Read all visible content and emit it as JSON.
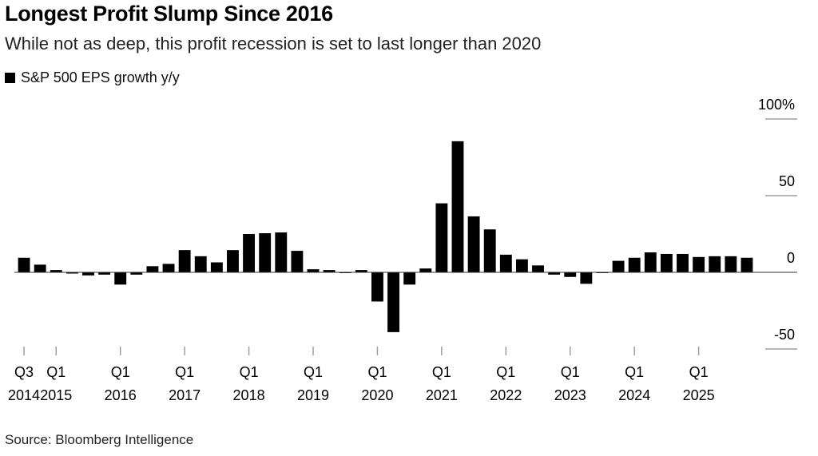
{
  "title": "Longest Profit Slump Since 2016",
  "subtitle": "While not as deep, this profit recession is set to last longer than 2020",
  "source": "Source: Bloomberg Intelligence",
  "colors": {
    "bar": "#000000",
    "gridline": "#9e9e9e",
    "zero_line": "#333333",
    "text": "#000000"
  },
  "chart_data": {
    "type": "bar",
    "series": [
      {
        "name": "S&P 500 EPS growth y/y",
        "values": [
          9.5,
          5,
          1.5,
          -0.8,
          -2,
          -1.5,
          -8,
          -1.5,
          4,
          5.5,
          14.5,
          10.5,
          6.5,
          14.5,
          25,
          25.5,
          26,
          14,
          2,
          1.5,
          -0.5,
          1.5,
          -19,
          -39,
          -8,
          2.5,
          45,
          85.5,
          36.5,
          28,
          11.5,
          8.5,
          4.5,
          -1.5,
          -3,
          -7.5,
          -0.5,
          7.5,
          9.5,
          13,
          12,
          12,
          10,
          10.5,
          10.5,
          9.5
        ]
      }
    ],
    "x_start": "Q3 2014",
    "frequency": "quarterly",
    "x_ticks": [
      {
        "index": 0,
        "quarter": "Q3",
        "year": "2014"
      },
      {
        "index": 2,
        "quarter": "Q1",
        "year": "2015"
      },
      {
        "index": 6,
        "quarter": "Q1",
        "year": "2016"
      },
      {
        "index": 10,
        "quarter": "Q1",
        "year": "2017"
      },
      {
        "index": 14,
        "quarter": "Q1",
        "year": "2018"
      },
      {
        "index": 18,
        "quarter": "Q1",
        "year": "2019"
      },
      {
        "index": 22,
        "quarter": "Q1",
        "year": "2020"
      },
      {
        "index": 26,
        "quarter": "Q1",
        "year": "2021"
      },
      {
        "index": 30,
        "quarter": "Q1",
        "year": "2022"
      },
      {
        "index": 34,
        "quarter": "Q1",
        "year": "2023"
      },
      {
        "index": 38,
        "quarter": "Q1",
        "year": "2024"
      },
      {
        "index": 42,
        "quarter": "Q1",
        "year": "2025"
      }
    ],
    "y_ticks": [
      {
        "value": 100,
        "label": "100%"
      },
      {
        "value": 50,
        "label": "50"
      },
      {
        "value": 0,
        "label": "0"
      },
      {
        "value": -50,
        "label": "-50"
      }
    ],
    "ylim": [
      -50,
      100
    ],
    "y_axis_side": "right",
    "grid": false,
    "legend_position": "top-left"
  }
}
